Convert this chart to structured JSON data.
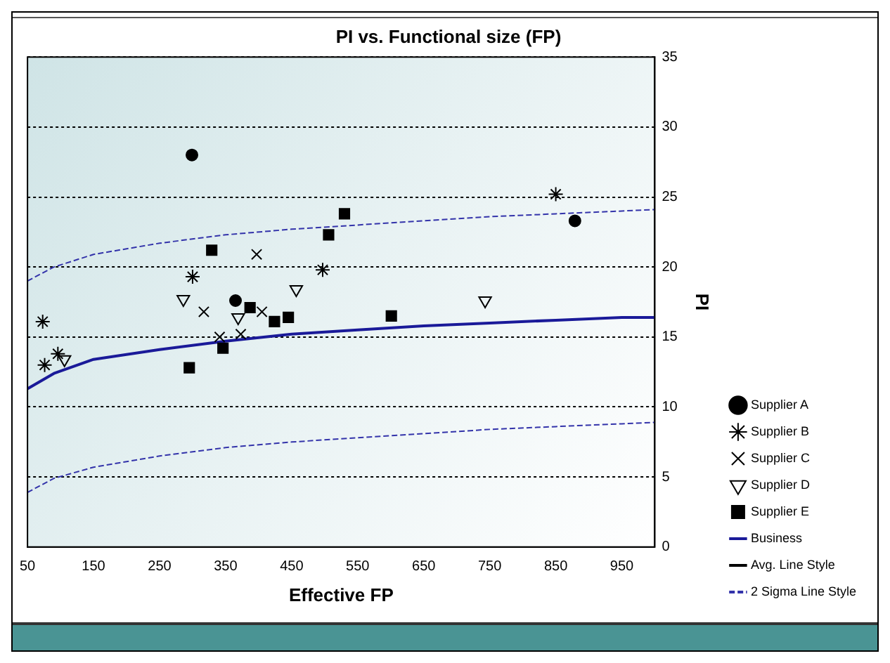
{
  "chart_data": {
    "type": "scatter",
    "title": "PI vs. Functional size (FP)",
    "xlabel": "Effective FP",
    "ylabel": "PI",
    "xlim": [
      50,
      1000
    ],
    "xticks": [
      50,
      150,
      250,
      350,
      450,
      550,
      650,
      750,
      850,
      950
    ],
    "ylim": [
      0,
      35
    ],
    "yticks": [
      0,
      5,
      10,
      15,
      20,
      25,
      30,
      35
    ],
    "grid": "y",
    "legend": "bottom right",
    "series": [
      {
        "name": "Supplier A",
        "type": "scatter",
        "marker": "circle",
        "color": "#000000",
        "x": [
          299,
          365,
          879
        ],
        "values": [
          28,
          17.6,
          23.3
        ]
      },
      {
        "name": "Supplier B",
        "type": "scatter",
        "color": "#000000",
        "x": [
          73,
          76,
          96,
          300,
          497,
          850
        ],
        "values": [
          16.1,
          13.0,
          13.8,
          19.3,
          19.8,
          25.2
        ]
      },
      {
        "name": "Supplier C",
        "type": "scatter",
        "marker": "cross",
        "color": "#000000",
        "x": [
          317,
          341,
          373,
          397,
          405
        ],
        "values": [
          16.8,
          15.0,
          15.2,
          20.9,
          16.8
        ]
      },
      {
        "name": "Supplier D",
        "type": "scatter",
        "marker": "triangle",
        "color": "#000000",
        "x": [
          106,
          286,
          369,
          457,
          743
        ],
        "values": [
          13.4,
          17.7,
          16.4,
          18.4,
          17.6
        ]
      },
      {
        "name": "Supplier E",
        "type": "scatter",
        "marker": "square",
        "color": "#000000",
        "x": [
          295,
          329,
          346,
          387,
          424,
          445,
          506,
          530,
          601
        ],
        "values": [
          12.8,
          21.2,
          14.2,
          17.1,
          16.1,
          16.4,
          22.3,
          23.8,
          16.5
        ]
      },
      {
        "name": "Business",
        "type": "line",
        "marker": "none",
        "line_style": "solid",
        "color": "#1a1a99",
        "x": [
          50,
          90,
          150,
          250,
          350,
          450,
          550,
          650,
          750,
          850,
          950,
          1000
        ],
        "values": [
          11.3,
          12.4,
          13.4,
          14.1,
          14.7,
          15.2,
          15.5,
          15.8,
          16.0,
          16.2,
          16.4,
          16.4
        ]
      },
      {
        "name": "Avg. Line Style",
        "type": "line",
        "marker": "none",
        "line_style": "solid",
        "color": "#000000"
      },
      {
        "name": "2 Sigma Line Style",
        "type": "line",
        "marker": "none",
        "line_style": "dashed",
        "color": "#3333aa",
        "x": [
          50,
          90,
          150,
          250,
          350,
          450,
          550,
          650,
          750,
          850,
          950,
          1000
        ],
        "values": [
          19.0,
          20.0,
          20.9,
          21.7,
          22.3,
          22.7,
          23.0,
          23.3,
          23.6,
          23.8,
          24.0,
          24.1
        ]
      },
      {
        "type": "line",
        "marker": "none",
        "line_style": "dashed",
        "color": "#3333aa",
        "x": [
          50,
          90,
          150,
          250,
          350,
          450,
          550,
          650,
          750,
          850,
          950,
          1000
        ],
        "values": [
          3.9,
          4.9,
          5.7,
          6.5,
          7.1,
          7.5,
          7.8,
          8.1,
          8.4,
          8.6,
          8.8,
          8.9
        ]
      }
    ]
  }
}
